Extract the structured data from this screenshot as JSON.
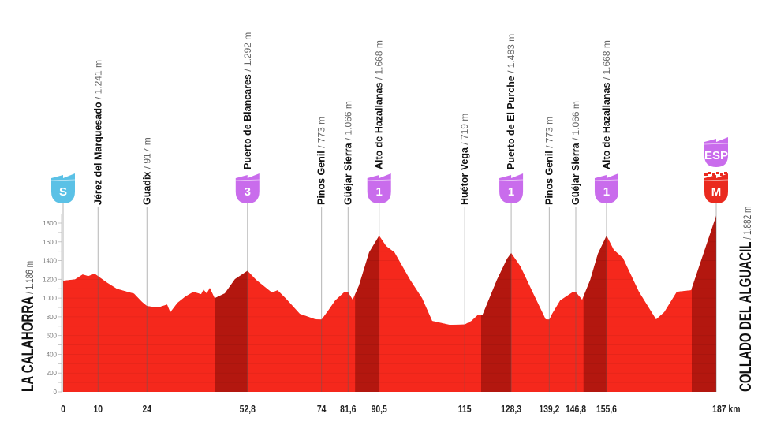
{
  "colors": {
    "profile": "#f5281c",
    "climb": "#b3170f",
    "sprint": "#5bc1e6",
    "mountain": "#c96cec",
    "finish": "#ea2a1f"
  },
  "start": {
    "name": "LA CALAHORRA",
    "elevation": "/ 1.186 m"
  },
  "finish": {
    "name": "COLLADO DEL ALGUACIL",
    "elevation": "/ 1.882 m"
  },
  "chart_data": {
    "type": "area",
    "xlim": [
      0,
      187
    ],
    "ylim": [
      0,
      1800
    ],
    "yticks": [
      0,
      200,
      400,
      600,
      800,
      1000,
      1200,
      1400,
      1600,
      1800
    ],
    "ytick_labels": [
      "0",
      "200",
      "400",
      "600",
      "800",
      "1000",
      "1200",
      "1400",
      "1600",
      "1800"
    ],
    "x_unit": "km",
    "profile": [
      [
        0,
        1186
      ],
      [
        3.4,
        1200
      ],
      [
        5.6,
        1253
      ],
      [
        7.2,
        1236
      ],
      [
        9,
        1262
      ],
      [
        10.2,
        1230
      ],
      [
        12.4,
        1170
      ],
      [
        15.4,
        1100
      ],
      [
        19.2,
        1060
      ],
      [
        20.3,
        1050
      ],
      [
        22.6,
        960
      ],
      [
        24,
        917
      ],
      [
        27.1,
        900
      ],
      [
        29.8,
        933
      ],
      [
        30.7,
        850
      ],
      [
        32.7,
        950
      ],
      [
        35,
        1018
      ],
      [
        37.3,
        1068
      ],
      [
        39.5,
        1043
      ],
      [
        40.2,
        1093
      ],
      [
        41.1,
        1051
      ],
      [
        42,
        1110
      ],
      [
        43.4,
        1000
      ],
      [
        46.3,
        1051
      ],
      [
        49.2,
        1203
      ],
      [
        52.8,
        1292
      ],
      [
        55.3,
        1194
      ],
      [
        59.8,
        1060
      ],
      [
        61.4,
        1085
      ],
      [
        63.7,
        1000
      ],
      [
        67.8,
        833
      ],
      [
        72.3,
        774
      ],
      [
        74,
        773
      ],
      [
        75.7,
        858
      ],
      [
        77.9,
        976
      ],
      [
        80.6,
        1068
      ],
      [
        81.6,
        1066
      ],
      [
        82.9,
        984
      ],
      [
        84.7,
        1135
      ],
      [
        87.6,
        1489
      ],
      [
        90.5,
        1668
      ],
      [
        92.5,
        1556
      ],
      [
        94.9,
        1489
      ],
      [
        99.4,
        1194
      ],
      [
        102.8,
        1000
      ],
      [
        105.7,
        757
      ],
      [
        110.7,
        715
      ],
      [
        115,
        719
      ],
      [
        116.9,
        757
      ],
      [
        118.6,
        816
      ],
      [
        120.1,
        824
      ],
      [
        124.2,
        1194
      ],
      [
        127.1,
        1421
      ],
      [
        128.3,
        1483
      ],
      [
        131,
        1337
      ],
      [
        134.4,
        1068
      ],
      [
        138.2,
        774
      ],
      [
        139.2,
        773
      ],
      [
        140,
        833
      ],
      [
        142.3,
        976
      ],
      [
        145.7,
        1060
      ],
      [
        146.8,
        1066
      ],
      [
        148.6,
        984
      ],
      [
        150.9,
        1194
      ],
      [
        153.1,
        1472
      ],
      [
        155.6,
        1668
      ],
      [
        157.7,
        1514
      ],
      [
        160.3,
        1430
      ],
      [
        164.9,
        1068
      ],
      [
        169.8,
        774
      ],
      [
        172.1,
        850
      ],
      [
        175.7,
        1068
      ],
      [
        179.8,
        1085
      ],
      [
        187,
        1882
      ]
    ],
    "climb_segments": [
      [
        43.4,
        52.8
      ],
      [
        83.6,
        90.5
      ],
      [
        119.7,
        128.3
      ],
      [
        149,
        155.6
      ],
      [
        180,
        187
      ]
    ],
    "points": [
      {
        "km": 0,
        "km_label": "0",
        "name": "",
        "elevation": "",
        "badge": "S",
        "badge_type": "sprint"
      },
      {
        "km": 10,
        "km_label": "10",
        "name": "Jérez del Marquesado",
        "elevation": " / 1.241 m",
        "badge": ""
      },
      {
        "km": 24,
        "km_label": "24",
        "name": "Guadix",
        "elevation": " / 917 m",
        "badge": ""
      },
      {
        "km": 52.8,
        "km_label": "52,8",
        "name": "Puerto de Blancares",
        "elevation": " / 1.292 m",
        "badge": "3",
        "badge_type": "mountain"
      },
      {
        "km": 74,
        "km_label": "74",
        "name": "Pinos Genil",
        "elevation": " / 773 m",
        "badge": ""
      },
      {
        "km": 81.6,
        "km_label": "81,6",
        "name": "Güéjar Sierra",
        "elevation": " / 1.066 m",
        "badge": ""
      },
      {
        "km": 90.5,
        "km_label": "90,5",
        "name": "Alto de Hazallanas",
        "elevation": " / 1.668 m",
        "badge": "1",
        "badge_type": "mountain"
      },
      {
        "km": 115,
        "km_label": "115",
        "name": "Huétor Vega",
        "elevation": " / 719 m",
        "badge": ""
      },
      {
        "km": 128.3,
        "km_label": "128,3",
        "name": "Puerto de El Purche",
        "elevation": " / 1.483 m",
        "badge": "1",
        "badge_type": "mountain"
      },
      {
        "km": 139.2,
        "km_label": "139,2",
        "name": "Pinos Genil",
        "elevation": " / 773 m",
        "badge": ""
      },
      {
        "km": 146.8,
        "km_label": "146,8",
        "name": "Güéjar Sierra",
        "elevation": " / 1.066 m",
        "badge": ""
      },
      {
        "km": 155.6,
        "km_label": "155,6",
        "name": "Alto de Hazallanas",
        "elevation": " / 1.668 m",
        "badge": "1",
        "badge_type": "mountain"
      },
      {
        "km": 187,
        "km_label": "187 km",
        "name": "",
        "elevation": "",
        "badge": "M",
        "badge_type": "finish",
        "badge2": "ESP",
        "badge2_type": "mountain"
      }
    ]
  }
}
